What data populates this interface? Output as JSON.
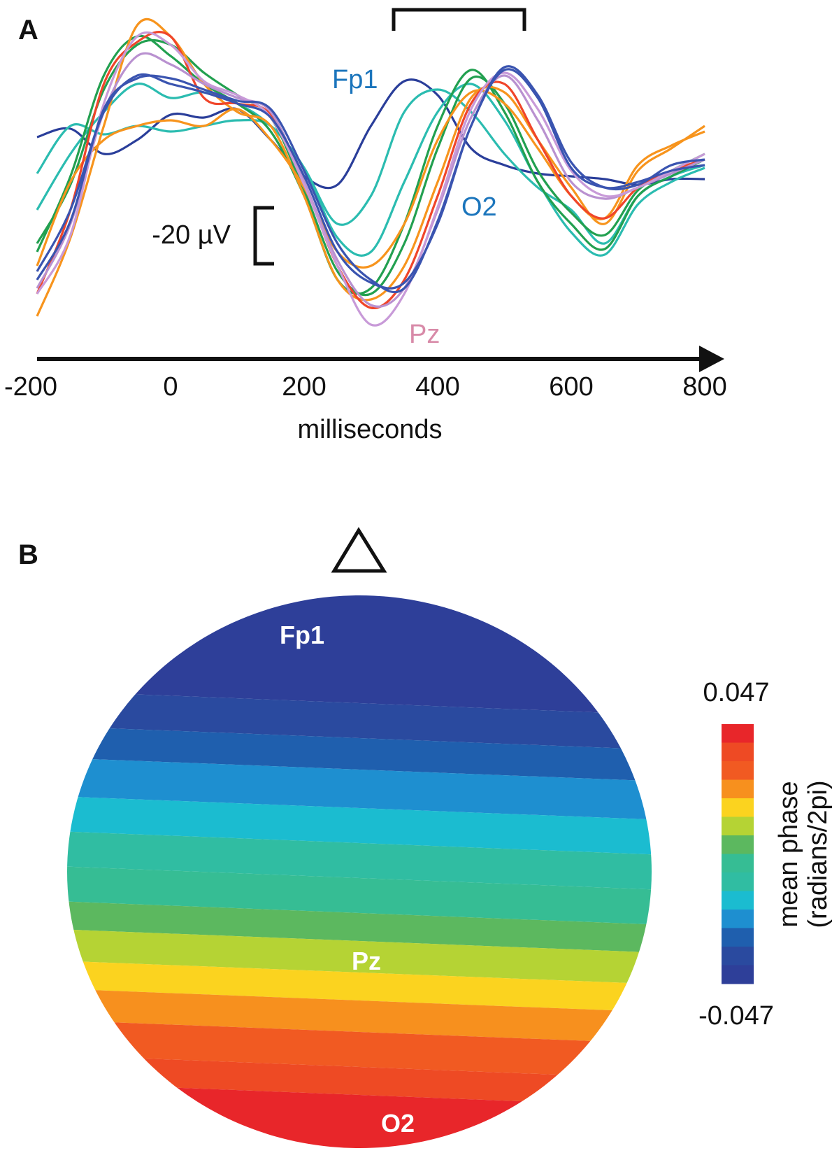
{
  "chart_data": [
    {
      "panel": "A",
      "type": "line",
      "xlabel": "milliseconds",
      "x_ticks": [
        "-200",
        "0",
        "200",
        "400",
        "600",
        "800"
      ],
      "xlim": [
        -200,
        800
      ],
      "x": [
        -200,
        -150,
        -100,
        -50,
        0,
        50,
        100,
        150,
        200,
        250,
        300,
        350,
        400,
        450,
        500,
        550,
        600,
        650,
        700,
        750,
        800
      ],
      "scale_bar_label": "-20 µV",
      "scale_bar_value_uv": -20,
      "highlight_window_ms": [
        334,
        530
      ],
      "series": [
        {
          "name": "Fp1",
          "color": "#2a3e9a",
          "values": [
            -26,
            -29,
            -20,
            -25,
            -34,
            -33,
            -36,
            -25,
            -12,
            -9,
            -30,
            -46,
            -41,
            -22,
            -16,
            -13,
            -12,
            -11,
            -9,
            -11,
            -11
          ]
        },
        {
          "color": "#2bbcb0",
          "values": [
            -13,
            -30,
            -27,
            -30,
            -28,
            -30,
            -32,
            -30,
            -15,
            5,
            -5,
            -35,
            -43,
            -35,
            -20,
            -8,
            0,
            12,
            -5,
            -12,
            -16
          ]
        },
        {
          "color": "#2bbcb0",
          "values": [
            0,
            -20,
            -35,
            -45,
            -40,
            -42,
            -38,
            -30,
            -15,
            10,
            15,
            -10,
            -35,
            -45,
            -32,
            -10,
            8,
            16,
            -2,
            -10,
            -15
          ]
        },
        {
          "color": "#22a050",
          "values": [
            12,
            -9,
            -43,
            -59,
            -59,
            -49,
            -41,
            -33,
            -7,
            22,
            30,
            12,
            -22,
            -47,
            -38,
            -14,
            1,
            9,
            -7,
            -14,
            -20
          ]
        },
        {
          "color": "#22a050",
          "values": [
            15,
            -12,
            -48,
            -62,
            -55,
            -45,
            -38,
            -28,
            -5,
            25,
            28,
            5,
            -30,
            -50,
            -35,
            -10,
            5,
            14,
            -5,
            -12,
            -18
          ]
        },
        {
          "color": "#f7941d",
          "values": [
            38,
            10,
            -30,
            -66,
            -62,
            -45,
            -35,
            -30,
            -5,
            25,
            32,
            20,
            -10,
            -40,
            -42,
            -25,
            -8,
            5,
            -14,
            -22,
            -30
          ]
        },
        {
          "color": "#f7941d",
          "values": [
            20,
            -10,
            -25,
            -30,
            -32,
            -30,
            -36,
            -25,
            -8,
            15,
            20,
            5,
            -25,
            -42,
            -38,
            -22,
            -5,
            3,
            -16,
            -23,
            -28
          ]
        },
        {
          "color": "#f0452a",
          "values": [
            30,
            0,
            -45,
            -60,
            -62,
            -40,
            -38,
            -34,
            -10,
            20,
            35,
            25,
            -5,
            -38,
            -45,
            -25,
            -5,
            3,
            -8,
            -14,
            -18
          ]
        },
        {
          "color": "#b991d0",
          "values": [
            28,
            5,
            -35,
            -55,
            -52,
            -45,
            -40,
            -35,
            -10,
            18,
            34,
            28,
            0,
            -33,
            -48,
            -32,
            -10,
            -4,
            -8,
            -13,
            -18
          ]
        },
        {
          "name": "Pz",
          "color": "#c89ad8",
          "values": [
            30,
            9,
            -38,
            -62,
            -59,
            -46,
            -41,
            -33,
            -9,
            20,
            41,
            30,
            -1,
            -36,
            -49,
            -36,
            -14,
            -5,
            -8,
            -14,
            -20
          ]
        },
        {
          "color": "#3a54b0",
          "values": [
            22,
            0,
            -35,
            -48,
            -45,
            -42,
            -38,
            -33,
            -12,
            15,
            26,
            26,
            5,
            -30,
            -50,
            -40,
            -15,
            -8,
            -10,
            -14,
            -16
          ]
        },
        {
          "name": "O2",
          "color": "#3a54b0",
          "values": [
            25,
            4,
            -36,
            -47,
            -47,
            -43,
            -39,
            -36,
            -14,
            12,
            25,
            28,
            4,
            -30,
            -51,
            -41,
            -17,
            -8,
            -9,
            -16,
            -18
          ]
        }
      ],
      "annotations": [
        {
          "text": "Fp1",
          "color": "#1b75bc"
        },
        {
          "text": "O2",
          "color": "#1b75bc"
        },
        {
          "text": "Pz",
          "color": "#d88aa8"
        }
      ],
      "y_polarity": "negative up"
    },
    {
      "panel": "B",
      "type": "heatmap",
      "description_type": "scalp topographic map",
      "electrode_labels": [
        "Fp1",
        "Pz",
        "O2"
      ],
      "colorbar": {
        "label_line1": "mean phase",
        "label_line2": "(radians/2pi)",
        "max_label": "0.047",
        "min_label": "-0.047",
        "range": [
          -0.047,
          0.047
        ],
        "colors_top_to_bottom": [
          "#e8262a",
          "#ee4a24",
          "#f15a22",
          "#f7901e",
          "#fbd31f",
          "#b5d334",
          "#5cb85f",
          "#36bd94",
          "#30bda2",
          "#1bbcd0",
          "#1e8fd0",
          "#1f5fae",
          "#2a4a9f",
          "#2e3f99"
        ]
      },
      "gradient": "front (Fp1) low/blue to back (O2) high/red",
      "nose_marker": "triangle"
    }
  ]
}
